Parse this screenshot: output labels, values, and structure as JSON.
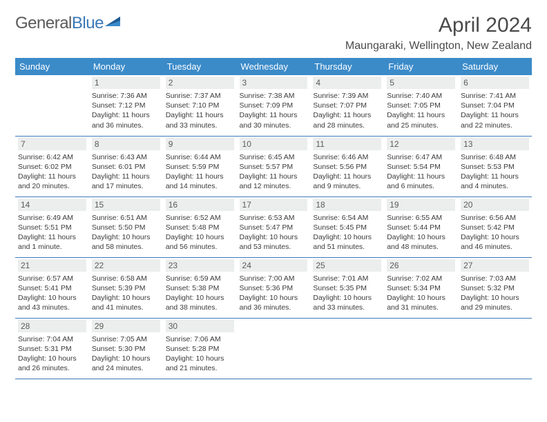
{
  "brand": {
    "part1": "General",
    "part2": "Blue"
  },
  "title": "April 2024",
  "location": "Maungaraki, Wellington, New Zealand",
  "colors": {
    "header_bg": "#3b8bc9",
    "header_text": "#ffffff",
    "daynum_bg": "#eceeee",
    "border": "#3b79b7",
    "brand_blue": "#3b79b7",
    "text": "#3a3a3a"
  },
  "typography": {
    "title_fontsize": 30,
    "location_fontsize": 16,
    "dayheader_fontsize": 13,
    "daynum_fontsize": 12,
    "info_fontsize": 10.5
  },
  "days_of_week": [
    "Sunday",
    "Monday",
    "Tuesday",
    "Wednesday",
    "Thursday",
    "Friday",
    "Saturday"
  ],
  "weeks": [
    [
      null,
      {
        "n": "1",
        "sunrise": "Sunrise: 7:36 AM",
        "sunset": "Sunset: 7:12 PM",
        "daylight": "Daylight: 11 hours and 36 minutes."
      },
      {
        "n": "2",
        "sunrise": "Sunrise: 7:37 AM",
        "sunset": "Sunset: 7:10 PM",
        "daylight": "Daylight: 11 hours and 33 minutes."
      },
      {
        "n": "3",
        "sunrise": "Sunrise: 7:38 AM",
        "sunset": "Sunset: 7:09 PM",
        "daylight": "Daylight: 11 hours and 30 minutes."
      },
      {
        "n": "4",
        "sunrise": "Sunrise: 7:39 AM",
        "sunset": "Sunset: 7:07 PM",
        "daylight": "Daylight: 11 hours and 28 minutes."
      },
      {
        "n": "5",
        "sunrise": "Sunrise: 7:40 AM",
        "sunset": "Sunset: 7:05 PM",
        "daylight": "Daylight: 11 hours and 25 minutes."
      },
      {
        "n": "6",
        "sunrise": "Sunrise: 7:41 AM",
        "sunset": "Sunset: 7:04 PM",
        "daylight": "Daylight: 11 hours and 22 minutes."
      }
    ],
    [
      {
        "n": "7",
        "sunrise": "Sunrise: 6:42 AM",
        "sunset": "Sunset: 6:02 PM",
        "daylight": "Daylight: 11 hours and 20 minutes."
      },
      {
        "n": "8",
        "sunrise": "Sunrise: 6:43 AM",
        "sunset": "Sunset: 6:01 PM",
        "daylight": "Daylight: 11 hours and 17 minutes."
      },
      {
        "n": "9",
        "sunrise": "Sunrise: 6:44 AM",
        "sunset": "Sunset: 5:59 PM",
        "daylight": "Daylight: 11 hours and 14 minutes."
      },
      {
        "n": "10",
        "sunrise": "Sunrise: 6:45 AM",
        "sunset": "Sunset: 5:57 PM",
        "daylight": "Daylight: 11 hours and 12 minutes."
      },
      {
        "n": "11",
        "sunrise": "Sunrise: 6:46 AM",
        "sunset": "Sunset: 5:56 PM",
        "daylight": "Daylight: 11 hours and 9 minutes."
      },
      {
        "n": "12",
        "sunrise": "Sunrise: 6:47 AM",
        "sunset": "Sunset: 5:54 PM",
        "daylight": "Daylight: 11 hours and 6 minutes."
      },
      {
        "n": "13",
        "sunrise": "Sunrise: 6:48 AM",
        "sunset": "Sunset: 5:53 PM",
        "daylight": "Daylight: 11 hours and 4 minutes."
      }
    ],
    [
      {
        "n": "14",
        "sunrise": "Sunrise: 6:49 AM",
        "sunset": "Sunset: 5:51 PM",
        "daylight": "Daylight: 11 hours and 1 minute."
      },
      {
        "n": "15",
        "sunrise": "Sunrise: 6:51 AM",
        "sunset": "Sunset: 5:50 PM",
        "daylight": "Daylight: 10 hours and 58 minutes."
      },
      {
        "n": "16",
        "sunrise": "Sunrise: 6:52 AM",
        "sunset": "Sunset: 5:48 PM",
        "daylight": "Daylight: 10 hours and 56 minutes."
      },
      {
        "n": "17",
        "sunrise": "Sunrise: 6:53 AM",
        "sunset": "Sunset: 5:47 PM",
        "daylight": "Daylight: 10 hours and 53 minutes."
      },
      {
        "n": "18",
        "sunrise": "Sunrise: 6:54 AM",
        "sunset": "Sunset: 5:45 PM",
        "daylight": "Daylight: 10 hours and 51 minutes."
      },
      {
        "n": "19",
        "sunrise": "Sunrise: 6:55 AM",
        "sunset": "Sunset: 5:44 PM",
        "daylight": "Daylight: 10 hours and 48 minutes."
      },
      {
        "n": "20",
        "sunrise": "Sunrise: 6:56 AM",
        "sunset": "Sunset: 5:42 PM",
        "daylight": "Daylight: 10 hours and 46 minutes."
      }
    ],
    [
      {
        "n": "21",
        "sunrise": "Sunrise: 6:57 AM",
        "sunset": "Sunset: 5:41 PM",
        "daylight": "Daylight: 10 hours and 43 minutes."
      },
      {
        "n": "22",
        "sunrise": "Sunrise: 6:58 AM",
        "sunset": "Sunset: 5:39 PM",
        "daylight": "Daylight: 10 hours and 41 minutes."
      },
      {
        "n": "23",
        "sunrise": "Sunrise: 6:59 AM",
        "sunset": "Sunset: 5:38 PM",
        "daylight": "Daylight: 10 hours and 38 minutes."
      },
      {
        "n": "24",
        "sunrise": "Sunrise: 7:00 AM",
        "sunset": "Sunset: 5:36 PM",
        "daylight": "Daylight: 10 hours and 36 minutes."
      },
      {
        "n": "25",
        "sunrise": "Sunrise: 7:01 AM",
        "sunset": "Sunset: 5:35 PM",
        "daylight": "Daylight: 10 hours and 33 minutes."
      },
      {
        "n": "26",
        "sunrise": "Sunrise: 7:02 AM",
        "sunset": "Sunset: 5:34 PM",
        "daylight": "Daylight: 10 hours and 31 minutes."
      },
      {
        "n": "27",
        "sunrise": "Sunrise: 7:03 AM",
        "sunset": "Sunset: 5:32 PM",
        "daylight": "Daylight: 10 hours and 29 minutes."
      }
    ],
    [
      {
        "n": "28",
        "sunrise": "Sunrise: 7:04 AM",
        "sunset": "Sunset: 5:31 PM",
        "daylight": "Daylight: 10 hours and 26 minutes."
      },
      {
        "n": "29",
        "sunrise": "Sunrise: 7:05 AM",
        "sunset": "Sunset: 5:30 PM",
        "daylight": "Daylight: 10 hours and 24 minutes."
      },
      {
        "n": "30",
        "sunrise": "Sunrise: 7:06 AM",
        "sunset": "Sunset: 5:28 PM",
        "daylight": "Daylight: 10 hours and 21 minutes."
      },
      null,
      null,
      null,
      null
    ]
  ]
}
